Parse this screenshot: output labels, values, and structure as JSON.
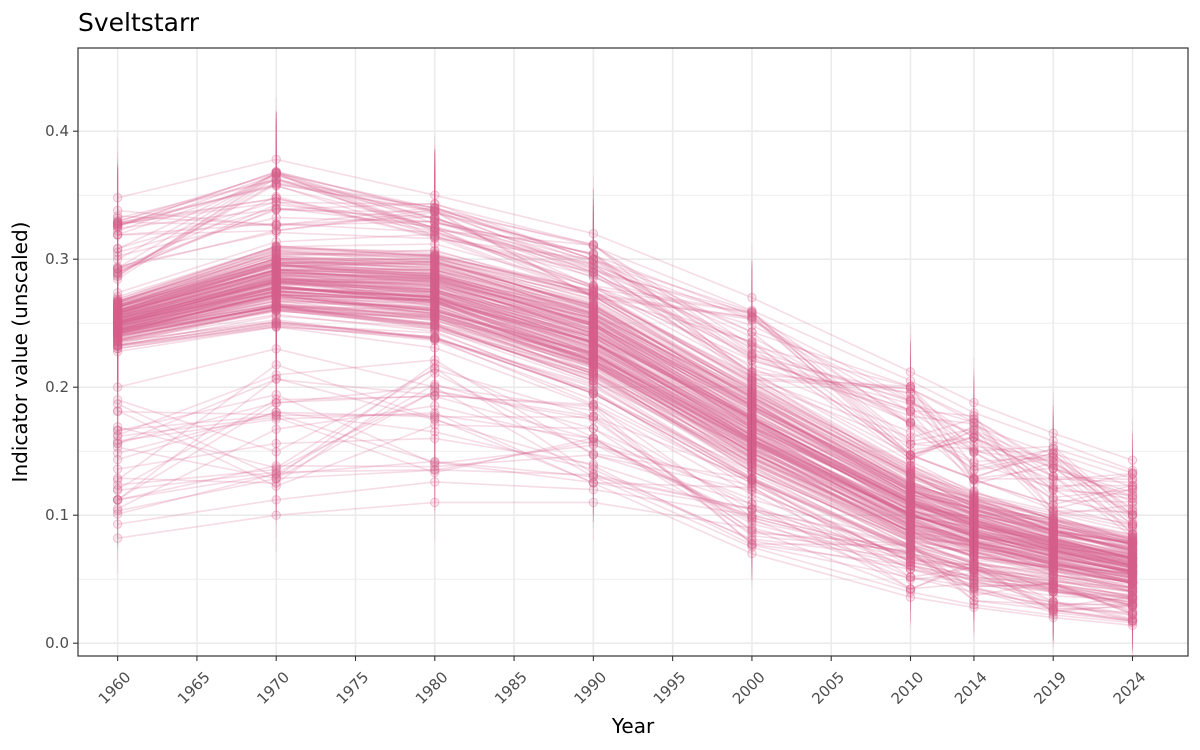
{
  "chart_data": {
    "type": "line",
    "title": "Sveltstarr",
    "xlabel": "Year",
    "ylabel": "Indicator value (unscaled)",
    "x": [
      1960,
      1970,
      1980,
      1990,
      2000,
      2010,
      2014,
      2019,
      2024
    ],
    "x_ticks": [
      "1960",
      "1965",
      "1970",
      "1975",
      "1980",
      "1985",
      "1990",
      "1995",
      "2000",
      "2005",
      "2010",
      "2014",
      "2019",
      "2024"
    ],
    "y_ticks": [
      "0.0",
      "0.1",
      "0.2",
      "0.3",
      "0.4"
    ],
    "xlim": [
      1957.5,
      2027.5
    ],
    "ylim": [
      -0.01,
      0.465
    ],
    "grid": true,
    "series_color": "#d6608c",
    "error_bars": true,
    "bands": {
      "description": "many overlapping realizations; central band and spread per year",
      "median": [
        0.25,
        0.29,
        0.295,
        0.24,
        0.17,
        0.105,
        0.085,
        0.065,
        0.05
      ],
      "core_low": [
        0.225,
        0.24,
        0.225,
        0.18,
        0.11,
        0.055,
        0.045,
        0.035,
        0.025
      ],
      "core_high": [
        0.275,
        0.32,
        0.32,
        0.29,
        0.22,
        0.15,
        0.13,
        0.11,
        0.095
      ],
      "max": [
        0.348,
        0.378,
        0.35,
        0.32,
        0.27,
        0.212,
        0.188,
        0.164,
        0.143
      ],
      "min": [
        0.082,
        0.1,
        0.11,
        0.108,
        0.066,
        0.034,
        0.026,
        0.018,
        0.013
      ]
    },
    "extreme_series": [
      {
        "values": [
          0.348,
          0.378,
          0.35,
          0.32,
          0.27,
          0.212,
          0.188,
          0.164,
          0.143
        ]
      },
      {
        "values": [
          0.33,
          0.362,
          0.34,
          0.31,
          0.26,
          0.205,
          0.18,
          0.158,
          0.135
        ]
      },
      {
        "values": [
          0.082,
          0.1,
          0.11,
          0.11,
          0.09,
          0.06,
          0.05,
          0.04,
          0.03
        ]
      },
      {
        "values": [
          0.093,
          0.112,
          0.126,
          0.12,
          0.1,
          0.07,
          0.06,
          0.05,
          0.04
        ]
      },
      {
        "values": [
          0.112,
          0.132,
          0.142,
          0.13,
          0.105,
          0.075,
          0.06,
          0.045,
          0.035
        ]
      },
      {
        "values": [
          0.136,
          0.156,
          0.16,
          0.14,
          0.1,
          0.07,
          0.055,
          0.042,
          0.03
        ]
      },
      {
        "values": [
          0.158,
          0.175,
          0.18,
          0.125,
          0.07,
          0.036,
          0.028,
          0.02,
          0.014
        ]
      },
      {
        "values": [
          0.2,
          0.23,
          0.2,
          0.13,
          0.075,
          0.04,
          0.03,
          0.022,
          0.016
        ]
      }
    ]
  }
}
